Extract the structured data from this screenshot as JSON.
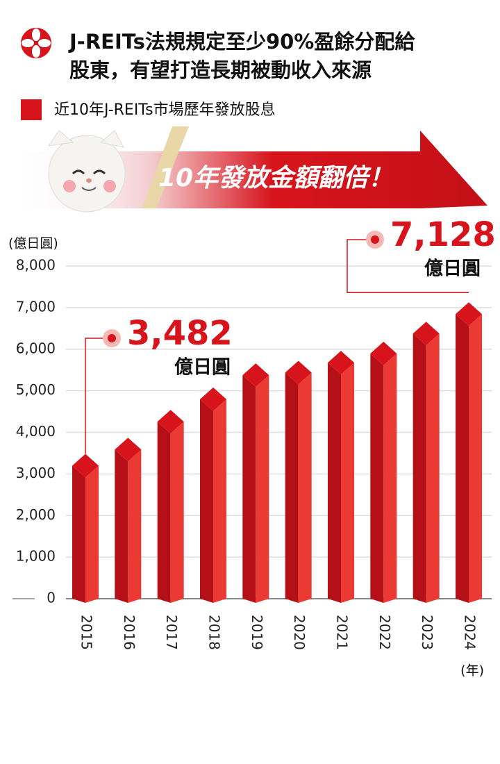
{
  "chart_data": {
    "type": "bar3d",
    "title": "J-REITs法規規定至少90%盈餘分配給",
    "subtitle": "股東，有望打造長期被動收入來源",
    "legend_label": "近10年J-REITs市場歷年發放股息",
    "banner": "10年發放金額翻倍！",
    "y_unit": "(億日圓)",
    "x_unit": "(年)",
    "categories": [
      "2015",
      "2016",
      "2017",
      "2018",
      "2019",
      "2020",
      "2021",
      "2022",
      "2023",
      "2024"
    ],
    "values": [
      3482,
      3870,
      4540,
      5080,
      5660,
      5720,
      5960,
      6180,
      6660,
      7128
    ],
    "value_labels": [
      "3,482",
      null,
      null,
      null,
      null,
      null,
      null,
      null,
      null,
      "7,128"
    ],
    "value_label_unit": "億日圓",
    "color": "#d7141c",
    "ylim": [
      0,
      8000
    ],
    "yticks": [
      0,
      {
        "value": 1000,
        "label": "1,000"
      },
      {
        "value": 2000,
        "label": "2,000"
      },
      {
        "value": 3000,
        "label": "3,000"
      },
      {
        "value": 4000,
        "label": "4,000"
      },
      {
        "value": 5000,
        "label": "5,000"
      },
      {
        "value": 6000,
        "label": "6,000"
      },
      {
        "value": 7000,
        "label": "7,000"
      },
      {
        "value": 8000,
        "label": "8,000"
      }
    ],
    "grid": true
  }
}
